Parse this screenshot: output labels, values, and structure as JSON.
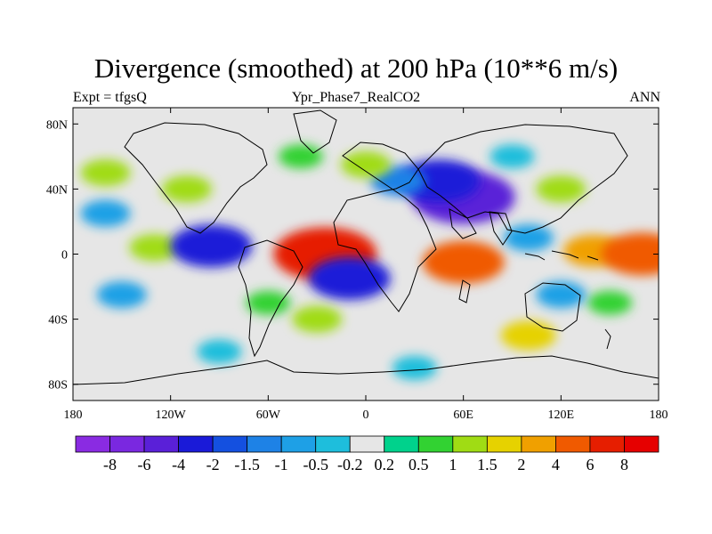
{
  "title": "Divergence (smoothed) at 200 hPa (10**6 m/s)",
  "subtitle_left": "Expt = tfgsQ",
  "subtitle_center": "Ypr_Phase7_RealCO2",
  "subtitle_right": "ANN",
  "axes": {
    "lat_ticks": [
      "80N",
      "40N",
      "0",
      "40S",
      "80S"
    ],
    "lon_ticks": [
      "180",
      "120W",
      "60W",
      "0",
      "60E",
      "120E",
      "180"
    ]
  },
  "colorbar": {
    "labels": [
      "-8",
      "-6",
      "-4",
      "-2",
      "-1.5",
      "-1",
      "-0.5",
      "-0.2",
      "0.2",
      "0.5",
      "1",
      "1.5",
      "2",
      "4",
      "6",
      "8"
    ],
    "colors": [
      "#8a2be2",
      "#7a28e0",
      "#5a20d8",
      "#1a1ad8",
      "#1450e0",
      "#1e82e6",
      "#1ea0e6",
      "#1ebedc",
      "#e6e6e6",
      "#00d28c",
      "#32d232",
      "#a0dc14",
      "#e6d200",
      "#f0a000",
      "#f05a00",
      "#e61e00",
      "#e60000"
    ]
  },
  "map": {
    "background": "#e6e6e6",
    "blobs": [
      {
        "lon": -25,
        "lat": 0,
        "value": 6
      },
      {
        "lon": 60,
        "lat": -5,
        "value": 4
      },
      {
        "lon": 140,
        "lat": 2,
        "value": 2
      },
      {
        "lon": 170,
        "lat": 0,
        "value": 4
      },
      {
        "lon": -130,
        "lat": 4,
        "value": 1
      },
      {
        "lon": -95,
        "lat": 5,
        "value": -4
      },
      {
        "lon": 60,
        "lat": 35,
        "value": -6
      },
      {
        "lon": 45,
        "lat": 45,
        "value": -4
      },
      {
        "lon": -10,
        "lat": -15,
        "value": -4
      },
      {
        "lon": 20,
        "lat": 45,
        "value": -1.5
      },
      {
        "lon": 100,
        "lat": 10,
        "value": -1
      },
      {
        "lon": -160,
        "lat": 25,
        "value": -1
      },
      {
        "lon": 120,
        "lat": 40,
        "value": 1
      },
      {
        "lon": 0,
        "lat": 55,
        "value": 1
      },
      {
        "lon": -40,
        "lat": 60,
        "value": 0.5
      },
      {
        "lon": -160,
        "lat": 50,
        "value": 1
      },
      {
        "lon": 100,
        "lat": -50,
        "value": 1.5
      },
      {
        "lon": -60,
        "lat": -30,
        "value": 0.5
      },
      {
        "lon": -30,
        "lat": -40,
        "value": 1
      },
      {
        "lon": 150,
        "lat": -30,
        "value": 0.5
      },
      {
        "lon": -150,
        "lat": -25,
        "value": -1
      },
      {
        "lon": 120,
        "lat": -25,
        "value": -1
      },
      {
        "lon": -90,
        "lat": -60,
        "value": -0.5
      },
      {
        "lon": 30,
        "lat": -70,
        "value": -0.5
      },
      {
        "lon": -110,
        "lat": 40,
        "value": 1
      },
      {
        "lon": 90,
        "lat": 60,
        "value": -0.5
      }
    ]
  }
}
